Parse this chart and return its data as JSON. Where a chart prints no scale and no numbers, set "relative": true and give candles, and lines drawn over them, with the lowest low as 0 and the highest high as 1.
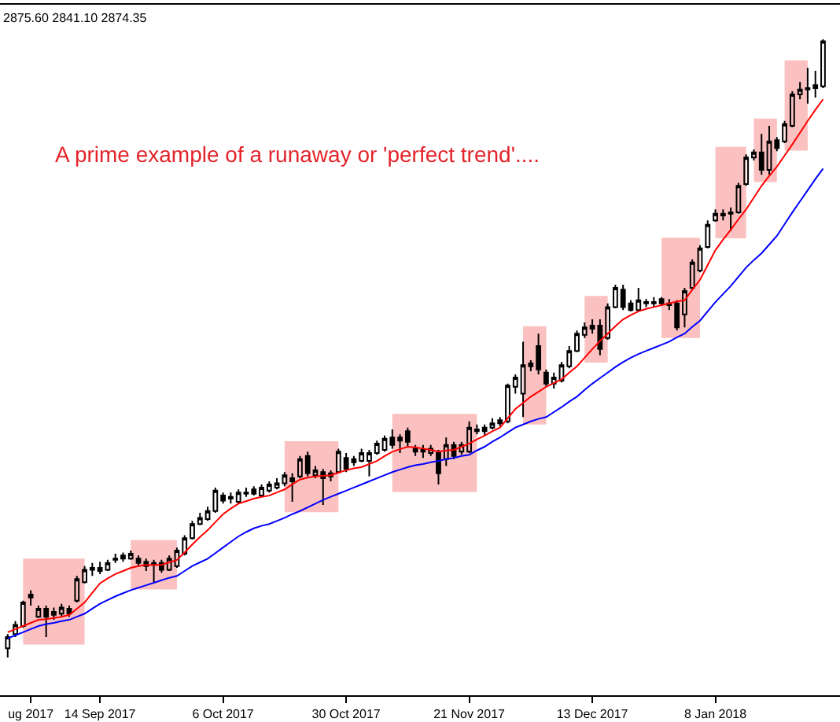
{
  "chart_data": {
    "type": "candlestick",
    "relative": true,
    "color": "#000000",
    "categories": [
      null,
      null,
      null,
      "ug 2017",
      null,
      null,
      null,
      null,
      null,
      null,
      null,
      null,
      "14 Sep 2017",
      null,
      null,
      null,
      null,
      null,
      null,
      null,
      null,
      null,
      null,
      null,
      null,
      null,
      null,
      null,
      "6 Oct 2017",
      null,
      null,
      null,
      null,
      null,
      null,
      null,
      null,
      null,
      null,
      null,
      null,
      null,
      null,
      null,
      "30 Oct 2017",
      null,
      null,
      null,
      null,
      null,
      null,
      null,
      null,
      null,
      null,
      null,
      null,
      null,
      null,
      null,
      "21 Nov 2017",
      null,
      null,
      null,
      null,
      null,
      null,
      null,
      null,
      null,
      null,
      null,
      null,
      null,
      null,
      null,
      "13 Dec 2017",
      null,
      null,
      null,
      null,
      null,
      null,
      null,
      null,
      null,
      null,
      null,
      null,
      null,
      null,
      null,
      "8 Jan 2018",
      null,
      null,
      null,
      null,
      null,
      null,
      null,
      null,
      null,
      null,
      null,
      null,
      null,
      null
    ],
    "ohlc": [
      [
        0.015,
        0.038,
        0,
        0.033
      ],
      [
        0.038,
        0.059,
        0.033,
        0.053
      ],
      [
        0.051,
        0.092,
        0.048,
        0.089
      ],
      [
        0.097,
        0.109,
        0.084,
        0.102
      ],
      [
        0.066,
        0.084,
        0.064,
        0.079
      ],
      [
        0.079,
        0.084,
        0.033,
        0.066
      ],
      [
        0.069,
        0.081,
        0.061,
        0.074
      ],
      [
        0.071,
        0.087,
        0.066,
        0.081
      ],
      [
        0.079,
        0.084,
        0.066,
        0.071
      ],
      [
        0.092,
        0.132,
        0.089,
        0.127
      ],
      [
        0.122,
        0.148,
        0.12,
        0.142
      ],
      [
        0.142,
        0.153,
        0.132,
        0.145
      ],
      [
        0.14,
        0.155,
        0.135,
        0.145
      ],
      [
        0.142,
        0.158,
        0.14,
        0.153
      ],
      [
        0.158,
        0.168,
        0.153,
        0.16
      ],
      [
        0.165,
        0.17,
        0.155,
        0.16
      ],
      [
        0.16,
        0.173,
        0.158,
        0.168
      ],
      [
        0.16,
        0.165,
        0.148,
        0.153
      ],
      [
        0.155,
        0.16,
        0.14,
        0.148
      ],
      [
        0.153,
        0.158,
        0.122,
        0.15
      ],
      [
        0.153,
        0.158,
        0.137,
        0.142
      ],
      [
        0.142,
        0.165,
        0.14,
        0.16
      ],
      [
        0.148,
        0.178,
        0.145,
        0.173
      ],
      [
        0.168,
        0.198,
        0.165,
        0.193
      ],
      [
        0.193,
        0.221,
        0.191,
        0.216
      ],
      [
        0.216,
        0.234,
        0.214,
        0.226
      ],
      [
        0.224,
        0.244,
        0.221,
        0.237
      ],
      [
        0.237,
        0.275,
        0.234,
        0.27
      ],
      [
        0.262,
        0.267,
        0.249,
        0.254
      ],
      [
        0.257,
        0.267,
        0.249,
        0.26
      ],
      [
        0.252,
        0.272,
        0.249,
        0.267
      ],
      [
        0.265,
        0.275,
        0.26,
        0.267
      ],
      [
        0.272,
        0.277,
        0.262,
        0.265
      ],
      [
        0.262,
        0.28,
        0.26,
        0.275
      ],
      [
        0.27,
        0.285,
        0.267,
        0.28
      ],
      [
        0.275,
        0.29,
        0.272,
        0.282
      ],
      [
        0.282,
        0.3,
        0.277,
        0.295
      ],
      [
        0.29,
        0.298,
        0.252,
        0.285
      ],
      [
        0.293,
        0.326,
        0.29,
        0.321
      ],
      [
        0.326,
        0.333,
        0.293,
        0.298
      ],
      [
        0.295,
        0.31,
        0.29,
        0.303
      ],
      [
        0.3,
        0.305,
        0.247,
        0.29
      ],
      [
        0.293,
        0.303,
        0.285,
        0.298
      ],
      [
        0.3,
        0.338,
        0.298,
        0.333
      ],
      [
        0.323,
        0.331,
        0.3,
        0.305
      ],
      [
        0.316,
        0.326,
        0.31,
        0.321
      ],
      [
        0.318,
        0.338,
        0.316,
        0.331
      ],
      [
        0.318,
        0.336,
        0.293,
        0.331
      ],
      [
        0.331,
        0.351,
        0.328,
        0.346
      ],
      [
        0.336,
        0.359,
        0.333,
        0.354
      ],
      [
        0.356,
        0.369,
        0.338,
        0.344
      ],
      [
        0.351,
        0.361,
        0.331,
        0.356
      ],
      [
        0.366,
        0.372,
        0.341,
        0.349
      ],
      [
        0.338,
        0.344,
        0.326,
        0.333
      ],
      [
        0.336,
        0.344,
        0.323,
        0.333
      ],
      [
        0.331,
        0.344,
        0.326,
        0.338
      ],
      [
        0.331,
        0.336,
        0.28,
        0.298
      ],
      [
        0.321,
        0.356,
        0.31,
        0.344
      ],
      [
        0.344,
        0.349,
        0.321,
        0.326
      ],
      [
        0.333,
        0.349,
        0.328,
        0.344
      ],
      [
        0.333,
        0.382,
        0.331,
        0.372
      ],
      [
        0.366,
        0.377,
        0.361,
        0.369
      ],
      [
        0.372,
        0.377,
        0.359,
        0.366
      ],
      [
        0.372,
        0.387,
        0.369,
        0.379
      ],
      [
        0.379,
        0.389,
        0.374,
        0.384
      ],
      [
        0.382,
        0.443,
        0.379,
        0.44
      ],
      [
        0.438,
        0.458,
        0.427,
        0.453
      ],
      [
        0.427,
        0.511,
        0.389,
        0.473
      ],
      [
        0.471,
        0.481,
        0.463,
        0.476
      ],
      [
        0.504,
        0.524,
        0.458,
        0.466
      ],
      [
        0.461,
        0.466,
        0.438,
        0.443
      ],
      [
        0.443,
        0.461,
        0.435,
        0.453
      ],
      [
        0.448,
        0.478,
        0.445,
        0.473
      ],
      [
        0.471,
        0.504,
        0.468,
        0.496
      ],
      [
        0.496,
        0.529,
        0.494,
        0.524
      ],
      [
        0.522,
        0.542,
        0.517,
        0.534
      ],
      [
        0.532,
        0.547,
        0.524,
        0.537
      ],
      [
        0.537,
        0.547,
        0.489,
        0.499
      ],
      [
        0.517,
        0.573,
        0.514,
        0.567
      ],
      [
        0.567,
        0.603,
        0.565,
        0.598
      ],
      [
        0.595,
        0.603,
        0.562,
        0.567
      ],
      [
        0.573,
        0.578,
        0.56,
        0.562
      ],
      [
        0.562,
        0.598,
        0.56,
        0.578
      ],
      [
        0.573,
        0.58,
        0.567,
        0.575
      ],
      [
        0.575,
        0.583,
        0.567,
        0.573
      ],
      [
        0.58,
        0.583,
        0.57,
        0.573
      ],
      [
        0.573,
        0.58,
        0.562,
        0.57
      ],
      [
        0.573,
        0.578,
        0.529,
        0.534
      ],
      [
        0.555,
        0.598,
        0.534,
        0.593
      ],
      [
        0.598,
        0.644,
        0.595,
        0.639
      ],
      [
        0.626,
        0.667,
        0.623,
        0.662
      ],
      [
        0.664,
        0.707,
        0.662,
        0.7
      ],
      [
        0.707,
        0.725,
        0.705,
        0.718
      ],
      [
        0.715,
        0.725,
        0.707,
        0.718
      ],
      [
        0.718,
        0.728,
        0.69,
        0.72
      ],
      [
        0.72,
        0.768,
        0.718,
        0.763
      ],
      [
        0.766,
        0.814,
        0.763,
        0.809
      ],
      [
        0.809,
        0.822,
        0.804,
        0.817
      ],
      [
        0.817,
        0.847,
        0.781,
        0.789
      ],
      [
        0.789,
        0.86,
        0.781,
        0.835
      ],
      [
        0.837,
        0.842,
        0.819,
        0.824
      ],
      [
        0.835,
        0.868,
        0.832,
        0.863
      ],
      [
        0.86,
        0.916,
        0.858,
        0.911
      ],
      [
        0.911,
        0.931,
        0.903,
        0.919
      ],
      [
        0.919,
        0.954,
        0.896,
        0.921
      ],
      [
        0.921,
        0.949,
        0.906,
        0.926
      ],
      [
        0.924,
        1,
        0.921,
        0.997
      ]
    ],
    "series": [
      {
        "type": "line",
        "color": "#ff0000",
        "values": [
          0.041,
          0.046,
          0.051,
          0.056,
          0.061,
          0.062,
          0.064,
          0.066,
          0.069,
          0.079,
          0.089,
          0.105,
          0.12,
          0.128,
          0.135,
          0.14,
          0.145,
          0.148,
          0.15,
          0.15,
          0.15,
          0.154,
          0.158,
          0.17,
          0.183,
          0.195,
          0.206,
          0.219,
          0.232,
          0.241,
          0.249,
          0.253,
          0.257,
          0.26,
          0.262,
          0.267,
          0.272,
          0.28,
          0.288,
          0.291,
          0.293,
          0.294,
          0.295,
          0.299,
          0.303,
          0.306,
          0.308,
          0.313,
          0.318,
          0.326,
          0.333,
          0.337,
          0.341,
          0.34,
          0.338,
          0.336,
          0.333,
          0.335,
          0.336,
          0.341,
          0.346,
          0.353,
          0.359,
          0.366,
          0.372,
          0.387,
          0.402,
          0.412,
          0.422,
          0.43,
          0.438,
          0.444,
          0.45,
          0.461,
          0.471,
          0.485,
          0.499,
          0.512,
          0.524,
          0.536,
          0.547,
          0.554,
          0.56,
          0.564,
          0.567,
          0.57,
          0.573,
          0.576,
          0.578,
          0.595,
          0.611,
          0.635,
          0.659,
          0.676,
          0.692,
          0.709,
          0.725,
          0.744,
          0.763,
          0.779,
          0.794,
          0.812,
          0.83,
          0.849,
          0.868,
          0.886,
          0.903
        ]
      },
      {
        "type": "line",
        "color": "#0000ff",
        "values": [
          0.031,
          0.036,
          0.041,
          0.046,
          0.051,
          0.054,
          0.056,
          0.059,
          0.061,
          0.066,
          0.071,
          0.079,
          0.087,
          0.093,
          0.099,
          0.104,
          0.109,
          0.113,
          0.117,
          0.121,
          0.125,
          0.129,
          0.132,
          0.14,
          0.148,
          0.154,
          0.16,
          0.169,
          0.178,
          0.187,
          0.196,
          0.203,
          0.209,
          0.213,
          0.216,
          0.221,
          0.226,
          0.232,
          0.237,
          0.243,
          0.249,
          0.255,
          0.26,
          0.265,
          0.27,
          0.275,
          0.28,
          0.285,
          0.29,
          0.295,
          0.3,
          0.304,
          0.308,
          0.311,
          0.313,
          0.316,
          0.318,
          0.321,
          0.323,
          0.326,
          0.328,
          0.335,
          0.341,
          0.349,
          0.356,
          0.364,
          0.372,
          0.377,
          0.382,
          0.386,
          0.389,
          0.397,
          0.405,
          0.414,
          0.422,
          0.433,
          0.443,
          0.452,
          0.461,
          0.47,
          0.478,
          0.485,
          0.491,
          0.496,
          0.501,
          0.506,
          0.511,
          0.518,
          0.524,
          0.535,
          0.545,
          0.56,
          0.575,
          0.588,
          0.601,
          0.616,
          0.631,
          0.643,
          0.654,
          0.668,
          0.682,
          0.701,
          0.72,
          0.738,
          0.756,
          0.774,
          0.791
        ]
      }
    ],
    "annotations": [
      "2875.60 2841.10 2874.35",
      "A prime example of a runaway or 'perfect trend'...."
    ]
  }
}
